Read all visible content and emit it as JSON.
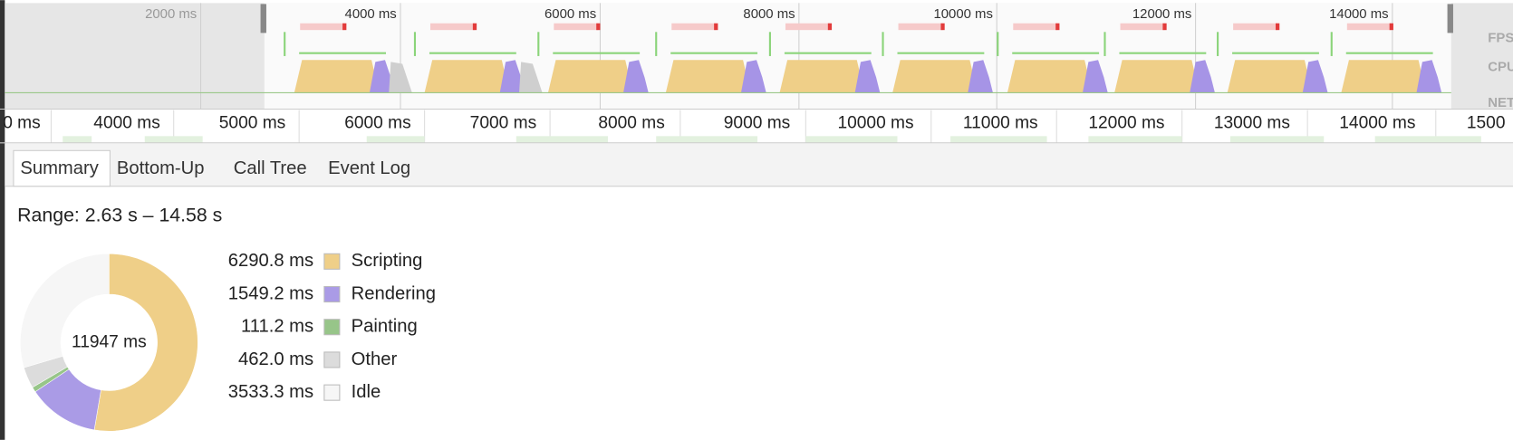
{
  "overview": {
    "tick_labels": [
      "2000 ms",
      "4000 ms",
      "6000 ms",
      "8000 ms",
      "10000 ms",
      "12000 ms",
      "14000 ms"
    ],
    "track_labels": [
      "FPS",
      "CPU",
      "NET"
    ]
  },
  "ruler": {
    "labels": [
      "0 ms",
      "4000 ms",
      "5000 ms",
      "6000 ms",
      "7000 ms",
      "8000 ms",
      "9000 ms",
      "10000 ms",
      "11000 ms",
      "12000 ms",
      "13000 ms",
      "14000 ms",
      "1500"
    ]
  },
  "tabs": {
    "items": [
      "Summary",
      "Bottom-Up",
      "Call Tree",
      "Event Log"
    ],
    "selected": 0
  },
  "summary": {
    "range": "Range: 2.63 s – 14.58 s",
    "total": "11947 ms",
    "items": [
      {
        "time": "6290.8 ms",
        "value": 6290.8,
        "name": "Scripting",
        "color": "#efcf88"
      },
      {
        "time": "1549.2 ms",
        "value": 1549.2,
        "name": "Rendering",
        "color": "#aa9be6"
      },
      {
        "time": "111.2 ms",
        "value": 111.2,
        "name": "Painting",
        "color": "#97c589"
      },
      {
        "time": "462.0 ms",
        "value": 462.0,
        "name": "Other",
        "color": "#dcdcdc"
      },
      {
        "time": "3533.3 ms",
        "value": 3533.3,
        "name": "Idle",
        "color": "#f6f6f6"
      }
    ]
  }
}
